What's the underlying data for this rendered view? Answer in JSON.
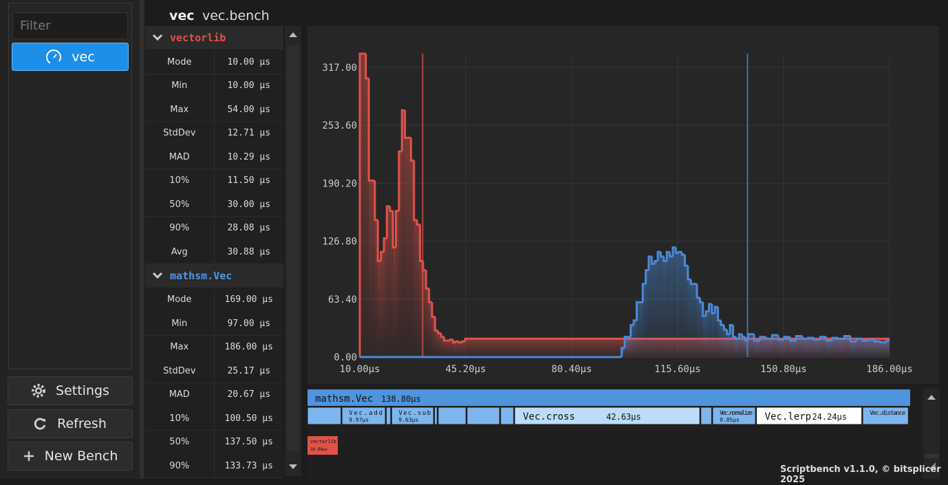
{
  "sidebar": {
    "filter_placeholder": "Filter",
    "items": [
      "vec"
    ],
    "buttons": [
      "Settings",
      "Refresh",
      "New Bench"
    ]
  },
  "header": {
    "bench": "vec",
    "file": "vec.bench"
  },
  "stats": [
    {
      "name": "vectorlib",
      "rows": [
        [
          "Mode",
          "10.00 µs"
        ],
        [
          "Min",
          "10.00 µs"
        ],
        [
          "Max",
          "54.00 µs"
        ],
        [
          "StdDev",
          "12.71 µs"
        ],
        [
          "MAD",
          "10.29 µs"
        ],
        [
          "10%",
          "11.50 µs"
        ],
        [
          "50%",
          "30.00 µs"
        ],
        [
          "90%",
          "28.08 µs"
        ],
        [
          "Avg",
          "30.88 µs"
        ]
      ]
    },
    {
      "name": "mathsm.Vec",
      "rows": [
        [
          "Mode",
          "169.00 µs"
        ],
        [
          "Min",
          "97.00 µs"
        ],
        [
          "Max",
          "186.00 µs"
        ],
        [
          "StdDev",
          "25.17 µs"
        ],
        [
          "MAD",
          "20.67 µs"
        ],
        [
          "10%",
          "100.50 µs"
        ],
        [
          "50%",
          "137.50 µs"
        ],
        [
          "90%",
          "133.73 µs"
        ]
      ]
    }
  ],
  "chart_data": {
    "type": "histogram",
    "xlim": [
      10,
      186
    ],
    "ylim": [
      0,
      332
    ],
    "xticks": [
      {
        "value": 10,
        "label": "10.00µs"
      },
      {
        "value": 45.2,
        "label": "45.20µs"
      },
      {
        "value": 80.4,
        "label": "80.40µs"
      },
      {
        "value": 115.6,
        "label": "115.60µs"
      },
      {
        "value": 150.8,
        "label": "150.80µs"
      },
      {
        "value": 186,
        "label": "186.00µs"
      }
    ],
    "yticks": [
      {
        "value": 0,
        "label": "0.00"
      },
      {
        "value": 63.4,
        "label": "63.40"
      },
      {
        "value": 126.8,
        "label": "126.80"
      },
      {
        "value": 190.2,
        "label": "190.20"
      },
      {
        "value": 253.6,
        "label": "253.60"
      },
      {
        "value": 317,
        "label": "317.00"
      }
    ],
    "grid": true,
    "series": [
      {
        "color": "#e0524a",
        "mean": 30.88,
        "bins": [
          10,
          11,
          12,
          13,
          14,
          15,
          16,
          17,
          18,
          19,
          20,
          21,
          22,
          23,
          24,
          25,
          26,
          27,
          28,
          29,
          30,
          31,
          32,
          33,
          34,
          35,
          36,
          37,
          38,
          39,
          40,
          41,
          42,
          43,
          44,
          45,
          186
        ],
        "values": [
          332,
          332,
          305,
          193,
          193,
          150,
          105,
          115,
          130,
          165,
          160,
          120,
          160,
          225,
          270,
          240,
          240,
          215,
          150,
          145,
          105,
          95,
          75,
          60,
          44,
          29,
          26,
          22,
          18,
          18,
          19,
          16,
          17,
          16,
          17,
          20
        ]
      },
      {
        "color": "#4a8ad8",
        "mean": 138.8,
        "bins": [
          10,
          97,
          98,
          99,
          100,
          101,
          102,
          103,
          104,
          105,
          106,
          107,
          108,
          109,
          110,
          111,
          112,
          113,
          114,
          115,
          116,
          117,
          118,
          119,
          120,
          121,
          122,
          123,
          124,
          125,
          126,
          127,
          128,
          129,
          130,
          131,
          132,
          133,
          134,
          135,
          136,
          137,
          138,
          139,
          141,
          143,
          145,
          147,
          149,
          151,
          153,
          155,
          157,
          159,
          161,
          163,
          165,
          167,
          169,
          171,
          173,
          175,
          177,
          179,
          181,
          183,
          185,
          186
        ],
        "values": [
          0,
          10,
          22,
          22,
          35,
          40,
          60,
          60,
          80,
          95,
          110,
          102,
          105,
          115,
          110,
          105,
          115,
          110,
          120,
          114,
          115,
          112,
          100,
          85,
          80,
          80,
          65,
          60,
          45,
          50,
          58,
          48,
          55,
          40,
          35,
          30,
          25,
          35,
          22,
          20,
          25,
          22,
          18,
          25,
          18,
          22,
          20,
          24,
          19,
          22,
          18,
          23,
          20,
          21,
          19,
          22,
          18,
          21,
          20,
          23,
          17,
          20,
          18,
          19,
          17,
          16,
          18
        ]
      }
    ]
  },
  "flame": {
    "root": {
      "name": "mathsm.Vec",
      "time": 138.8,
      "time_label": "138.80µs"
    },
    "children": [
      {
        "name": null,
        "time": 7.71
      },
      {
        "name": "Vec.add",
        "time": 9.97,
        "time_label": "9.97µs"
      },
      {
        "name": null,
        "time": 1.0
      },
      {
        "name": "Vec.sub",
        "time": 9.63,
        "time_label": "9.63µs"
      },
      {
        "name": null,
        "time": 0.6
      },
      {
        "name": null,
        "time": 6.4
      },
      {
        "name": null,
        "time": 7.5
      },
      {
        "name": null,
        "time": 3.0
      },
      {
        "name": "Vec.cross",
        "time": 42.63,
        "time_label": "42.63µs"
      },
      {
        "name": null,
        "time": 2.5
      },
      {
        "name": "Vec.normalize",
        "time": 9.85,
        "time_label": "9.85µs"
      },
      {
        "name": "Vec.lerp",
        "time": 24.24,
        "time_label": "24.24µs"
      },
      {
        "name": "Vec.distance",
        "time": 10.5
      }
    ],
    "other": {
      "name": "vectorlib",
      "time_label": "30.88µs"
    }
  },
  "footer": "Scriptbench v1.1.0, © bitsplicer 2025"
}
